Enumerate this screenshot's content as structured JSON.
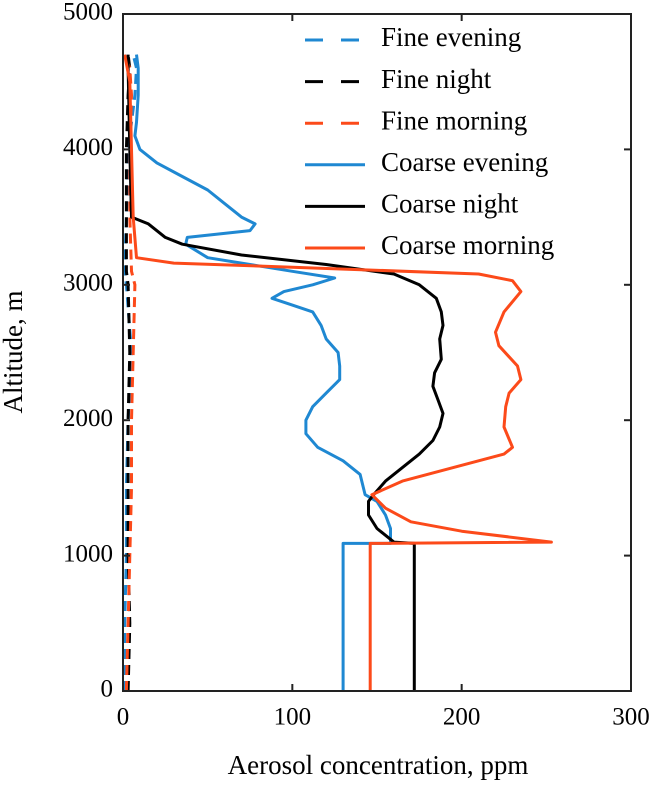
{
  "chart_data": {
    "type": "line",
    "xlabel": "Aerosol concentration, ppm",
    "ylabel": "Altitude, m",
    "xlim": [
      0,
      300
    ],
    "xticks": [
      0,
      100,
      200,
      300
    ],
    "ylim": [
      0,
      5000
    ],
    "yticks": [
      0,
      1000,
      2000,
      3000,
      4000,
      5000
    ],
    "legend": "top-right",
    "series": [
      {
        "name": "Fine evening",
        "color": "#1f88d2",
        "linestyle": "dashed",
        "x": [
          1,
          1,
          2,
          2,
          3,
          5,
          2,
          1,
          2,
          3,
          7,
          8,
          6
        ],
        "values": [
          0,
          500,
          1000,
          1500,
          2000,
          2500,
          3000,
          3100,
          3500,
          4000,
          4400,
          4600,
          4700
        ]
      },
      {
        "name": "Fine night",
        "color": "#000000",
        "linestyle": "dashed",
        "x": [
          3,
          4,
          3,
          3,
          3,
          4,
          3,
          2,
          2,
          2,
          3,
          4,
          3
        ],
        "values": [
          0,
          500,
          1000,
          1500,
          2000,
          2500,
          3000,
          3100,
          3500,
          4000,
          4400,
          4600,
          4700
        ]
      },
      {
        "name": "Fine morning",
        "color": "#fc4a1a",
        "linestyle": "dashed",
        "x": [
          2,
          3,
          4,
          5,
          5,
          6,
          7,
          5,
          4,
          4,
          5,
          4,
          1
        ],
        "values": [
          0,
          500,
          1000,
          1500,
          2000,
          2500,
          3000,
          3100,
          3500,
          4000,
          4400,
          4600,
          4700
        ]
      },
      {
        "name": "Coarse evening",
        "color": "#1f88d2",
        "linestyle": "solid",
        "x": [
          130,
          130,
          158,
          158,
          155,
          150,
          143,
          140,
          130,
          115,
          108,
          108,
          112,
          120,
          128,
          128,
          127,
          120,
          117,
          112,
          100,
          88,
          95,
          112,
          125,
          100,
          50,
          37,
          38,
          75,
          78,
          70,
          60,
          50,
          35,
          20,
          10,
          7,
          8,
          9,
          9,
          8
        ],
        "values": [
          0,
          1090,
          1090,
          1200,
          1300,
          1400,
          1450,
          1600,
          1700,
          1800,
          1900,
          2000,
          2100,
          2200,
          2300,
          2400,
          2500,
          2600,
          2700,
          2800,
          2850,
          2900,
          2950,
          3000,
          3050,
          3100,
          3200,
          3300,
          3350,
          3400,
          3450,
          3500,
          3600,
          3700,
          3800,
          3900,
          4000,
          4100,
          4200,
          4400,
          4600,
          4700
        ]
      },
      {
        "name": "Coarse night",
        "color": "#000000",
        "linestyle": "solid",
        "x": [
          172,
          172,
          160,
          150,
          145,
          145,
          148,
          155,
          165,
          175,
          183,
          187,
          189,
          186,
          183,
          184,
          188,
          187,
          189,
          188,
          185,
          175,
          160,
          120,
          70,
          35,
          25,
          15,
          5,
          4,
          3,
          3
        ],
        "values": [
          0,
          1090,
          1100,
          1200,
          1300,
          1400,
          1450,
          1550,
          1650,
          1750,
          1850,
          1950,
          2050,
          2150,
          2250,
          2350,
          2450,
          2600,
          2700,
          2800,
          2900,
          3000,
          3080,
          3150,
          3220,
          3300,
          3350,
          3450,
          3500,
          4000,
          4600,
          4700
        ]
      },
      {
        "name": "Coarse morning",
        "color": "#fc4a1a",
        "linestyle": "solid",
        "x": [
          146,
          146,
          253,
          200,
          170,
          155,
          147,
          165,
          195,
          225,
          230,
          225,
          226,
          228,
          235,
          233,
          222,
          220,
          225,
          235,
          230,
          210,
          100,
          30,
          8,
          6,
          5,
          4,
          1
        ],
        "values": [
          0,
          1090,
          1100,
          1180,
          1250,
          1350,
          1450,
          1550,
          1650,
          1750,
          1800,
          1950,
          2100,
          2200,
          2300,
          2400,
          2550,
          2650,
          2800,
          2950,
          3030,
          3080,
          3130,
          3160,
          3200,
          3500,
          4000,
          4500,
          4700
        ]
      }
    ]
  }
}
